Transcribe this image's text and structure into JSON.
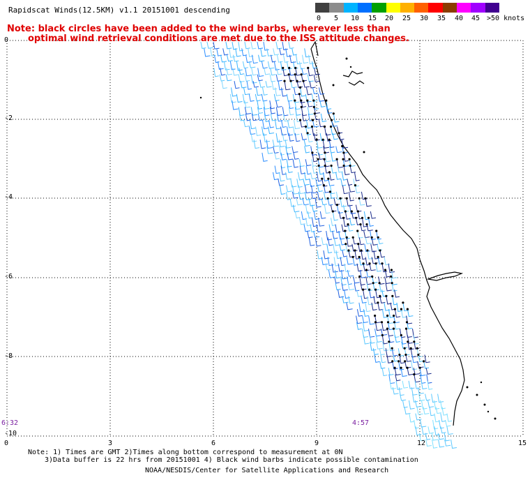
{
  "title": "Rapidscat Winds(12.5KM) v1.1 20151001 descending",
  "note": {
    "line1": "Note: black circles have been added to the wind barbs, wherever less than",
    "line2": "optimal wind retrieval conditions are met due to the ISS attitude changes."
  },
  "color_scale": {
    "ticks": [
      "0",
      "5",
      "10",
      "15",
      "20",
      "25",
      "30",
      "35",
      "40",
      "45",
      ">50 knots"
    ],
    "colors": [
      "#404040",
      "#8c8c8c",
      "#00b4ff",
      "#0070ff",
      "#00a000",
      "#ffff00",
      "#ffb000",
      "#ff6000",
      "#ff0000",
      "#8c3c00",
      "#ff00ff",
      "#a000ff",
      "#400090"
    ]
  },
  "map": {
    "y_ticks": [
      "0",
      "-2",
      "-4",
      "-6",
      "-8",
      "-10"
    ],
    "x_ticks": [
      "0",
      "3",
      "6",
      "9",
      "12",
      "15"
    ],
    "time_labels": [
      "6:32",
      "4:57"
    ]
  },
  "footnotes": {
    "line1": "Note: 1) Times are GMT 2)Times along bottom correspond to measurement at 0N",
    "line2": "3)Data buffer is 22 hrs from 20151001 4) Black wind barbs indicate possible contamination",
    "line3": "NOAA/NESDIS/Center for Satellite Applications and Research"
  }
}
